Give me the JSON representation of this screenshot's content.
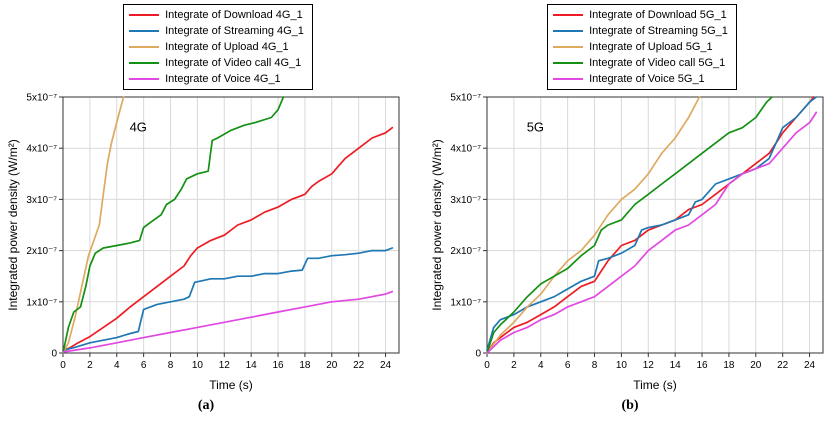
{
  "figure": {
    "background": "#ffffff"
  },
  "chart_data": [
    {
      "type": "line",
      "panel": "a",
      "caption": "(a)",
      "annotation": {
        "text": "4G",
        "x": 5.6,
        "y": 4.33
      },
      "xlabel": "Time (s)",
      "ylabel": "Integrated power density  (W/m²)",
      "xlim": [
        0,
        25
      ],
      "ylim": [
        0,
        5
      ],
      "y_value_scale": "values in units of 1x10⁻⁷ W/m²",
      "grid": true,
      "legend_position": "top-center",
      "x_ticks": [
        0,
        2,
        4,
        6,
        8,
        10,
        12,
        14,
        16,
        18,
        20,
        22,
        24
      ],
      "x_tick_labels": [
        "0",
        "2",
        "4",
        "6",
        "8",
        "10",
        "12",
        "14",
        "16",
        "18",
        "20",
        "22",
        "24"
      ],
      "y_ticks": [
        0,
        1,
        2,
        3,
        4,
        5
      ],
      "y_tick_labels": [
        "0",
        "1x10⁻⁷",
        "2x10⁻⁷",
        "3x10⁻⁷",
        "4x10⁻⁷",
        "5x10⁻⁷"
      ],
      "series": [
        {
          "name": "Integrate of Download 4G_1",
          "color": "#ed1c24",
          "x": [
            0,
            0.5,
            1,
            2,
            3,
            4,
            5,
            6,
            7,
            8,
            9,
            9.5,
            10,
            11,
            12,
            13,
            14,
            15,
            16,
            17,
            18,
            18.5,
            19,
            20,
            20.5,
            21,
            22,
            23,
            24,
            24.5
          ],
          "y": [
            0.05,
            0.1,
            0.18,
            0.32,
            0.5,
            0.68,
            0.9,
            1.1,
            1.3,
            1.5,
            1.7,
            1.9,
            2.05,
            2.2,
            2.3,
            2.5,
            2.6,
            2.75,
            2.85,
            3.0,
            3.1,
            3.25,
            3.35,
            3.5,
            3.65,
            3.8,
            4.0,
            4.2,
            4.3,
            4.4
          ]
        },
        {
          "name": "Integrate of Streaming 4G_1",
          "color": "#1f77b4",
          "x": [
            0,
            1,
            2,
            3,
            4,
            5,
            5.6,
            6.0,
            6.5,
            7,
            8,
            9,
            9.4,
            9.8,
            10.5,
            11,
            12,
            13,
            14,
            15,
            16,
            17,
            17.8,
            18.2,
            19,
            20,
            21,
            22,
            23,
            24,
            24.5
          ],
          "y": [
            0.05,
            0.12,
            0.2,
            0.25,
            0.3,
            0.38,
            0.42,
            0.85,
            0.9,
            0.95,
            1.0,
            1.05,
            1.1,
            1.38,
            1.42,
            1.45,
            1.45,
            1.5,
            1.5,
            1.55,
            1.55,
            1.6,
            1.62,
            1.85,
            1.85,
            1.9,
            1.92,
            1.95,
            2.0,
            2.0,
            2.05
          ]
        },
        {
          "name": "Integrate of Upload 4G_1",
          "color": "#ddaa60",
          "x": [
            0,
            0.4,
            0.9,
            1.4,
            1.9,
            2.3,
            2.7,
            3.0,
            3.3,
            3.6,
            3.9,
            4.2,
            4.5
          ],
          "y": [
            0,
            0.2,
            0.7,
            1.3,
            1.9,
            2.2,
            2.5,
            3.1,
            3.7,
            4.1,
            4.4,
            4.7,
            5.0
          ]
        },
        {
          "name": "Integrate of Video call 4G_1",
          "color": "#149114",
          "x": [
            0,
            0.4,
            0.8,
            1.3,
            1.7,
            2.0,
            2.4,
            3.0,
            4.0,
            5.0,
            5.7,
            6.0,
            6.5,
            7.3,
            7.7,
            8.3,
            8.8,
            9.2,
            10.0,
            10.8,
            11.1,
            11.5,
            12.5,
            13.5,
            14.3,
            15.5,
            16.0,
            16.4
          ],
          "y": [
            0,
            0.5,
            0.8,
            0.9,
            1.3,
            1.7,
            1.95,
            2.05,
            2.1,
            2.15,
            2.2,
            2.45,
            2.55,
            2.7,
            2.9,
            3.0,
            3.2,
            3.4,
            3.5,
            3.55,
            4.15,
            4.2,
            4.35,
            4.45,
            4.5,
            4.6,
            4.75,
            5.0
          ]
        },
        {
          "name": "Integrate of Voice 4G_1",
          "color": "#e248e2",
          "x": [
            0,
            2,
            4,
            6,
            8,
            10,
            12,
            14,
            16,
            18,
            20,
            22,
            24,
            24.5
          ],
          "y": [
            0.02,
            0.1,
            0.2,
            0.3,
            0.4,
            0.5,
            0.6,
            0.7,
            0.8,
            0.9,
            1.0,
            1.05,
            1.15,
            1.2
          ]
        }
      ]
    },
    {
      "type": "line",
      "panel": "b",
      "caption": "(b)",
      "annotation": {
        "text": "5G",
        "x": 3.6,
        "y": 4.33
      },
      "xlabel": "Time (s)",
      "ylabel": "Integrated power density  (W/m²)",
      "xlim": [
        0,
        25
      ],
      "ylim": [
        0,
        5
      ],
      "y_value_scale": "values in units of 1x10⁻⁷ W/m²",
      "grid": true,
      "legend_position": "top-center",
      "x_ticks": [
        0,
        2,
        4,
        6,
        8,
        10,
        12,
        14,
        16,
        18,
        20,
        22,
        24
      ],
      "x_tick_labels": [
        "0",
        "2",
        "4",
        "6",
        "8",
        "10",
        "12",
        "14",
        "16",
        "18",
        "20",
        "22",
        "24"
      ],
      "y_ticks": [
        0,
        1,
        2,
        3,
        4,
        5
      ],
      "y_tick_labels": [
        "0",
        "1x10⁻⁷",
        "2x10⁻⁷",
        "3x10⁻⁷",
        "4x10⁻⁷",
        "5x10⁻⁷"
      ],
      "series": [
        {
          "name": "Integrate of Download 5G_1",
          "color": "#ed1c24",
          "x": [
            0,
            0.5,
            1,
            2,
            3,
            4,
            5,
            6,
            7,
            8,
            8.5,
            9,
            10,
            11,
            12,
            13,
            14,
            15,
            16,
            17,
            18,
            19,
            20,
            21,
            21.5,
            22,
            23,
            24,
            24.3
          ],
          "y": [
            0,
            0.2,
            0.3,
            0.5,
            0.6,
            0.75,
            0.9,
            1.1,
            1.3,
            1.4,
            1.6,
            1.8,
            2.1,
            2.2,
            2.4,
            2.5,
            2.6,
            2.8,
            2.9,
            3.1,
            3.3,
            3.5,
            3.7,
            3.9,
            4.1,
            4.3,
            4.6,
            4.9,
            5.0
          ]
        },
        {
          "name": "Integrate of Streaming 5G_1",
          "color": "#1f77b4",
          "x": [
            0,
            0.5,
            1,
            2,
            3,
            4,
            5,
            6,
            7,
            8,
            8.3,
            9,
            10,
            11,
            11.5,
            12,
            13,
            14,
            15,
            15.5,
            16,
            17,
            18,
            19,
            20,
            21,
            21.5,
            22,
            23,
            24,
            24.5
          ],
          "y": [
            0.05,
            0.5,
            0.65,
            0.75,
            0.9,
            1.0,
            1.1,
            1.25,
            1.4,
            1.5,
            1.8,
            1.85,
            1.95,
            2.1,
            2.4,
            2.45,
            2.5,
            2.6,
            2.7,
            2.95,
            3.0,
            3.3,
            3.4,
            3.5,
            3.6,
            3.8,
            4.1,
            4.4,
            4.6,
            4.9,
            5.0
          ]
        },
        {
          "name": "Integrate of Upload 5G_1",
          "color": "#ddaa60",
          "x": [
            0,
            1,
            2,
            3,
            4,
            5,
            6,
            7,
            8,
            9,
            10,
            11,
            12,
            13,
            14,
            15,
            15.8
          ],
          "y": [
            0,
            0.35,
            0.6,
            0.9,
            1.15,
            1.5,
            1.8,
            2.0,
            2.3,
            2.7,
            3.0,
            3.2,
            3.5,
            3.9,
            4.2,
            4.6,
            5.0
          ]
        },
        {
          "name": "Integrate of Video call 5G_1",
          "color": "#149114",
          "x": [
            0,
            0.5,
            1,
            2,
            3,
            4,
            5,
            6,
            7,
            8,
            8.5,
            9,
            10,
            11,
            12,
            13,
            14,
            15,
            16,
            17,
            18,
            19,
            20,
            20.8,
            21.2
          ],
          "y": [
            0,
            0.4,
            0.55,
            0.8,
            1.1,
            1.35,
            1.5,
            1.65,
            1.9,
            2.1,
            2.4,
            2.5,
            2.6,
            2.9,
            3.1,
            3.3,
            3.5,
            3.7,
            3.9,
            4.1,
            4.3,
            4.4,
            4.6,
            4.9,
            5.0
          ]
        },
        {
          "name": "Integrate of Voice 5G_1",
          "color": "#e248e2",
          "x": [
            0,
            1,
            2,
            3,
            4,
            5,
            6,
            7,
            8,
            9,
            10,
            11,
            12,
            13,
            14,
            15,
            16,
            17,
            18,
            19,
            20,
            21,
            22,
            23,
            24,
            24.5
          ],
          "y": [
            0,
            0.25,
            0.4,
            0.5,
            0.65,
            0.75,
            0.9,
            1.0,
            1.1,
            1.3,
            1.5,
            1.7,
            2.0,
            2.2,
            2.4,
            2.5,
            2.7,
            2.9,
            3.3,
            3.5,
            3.6,
            3.7,
            4.0,
            4.3,
            4.5,
            4.7
          ]
        }
      ]
    }
  ]
}
